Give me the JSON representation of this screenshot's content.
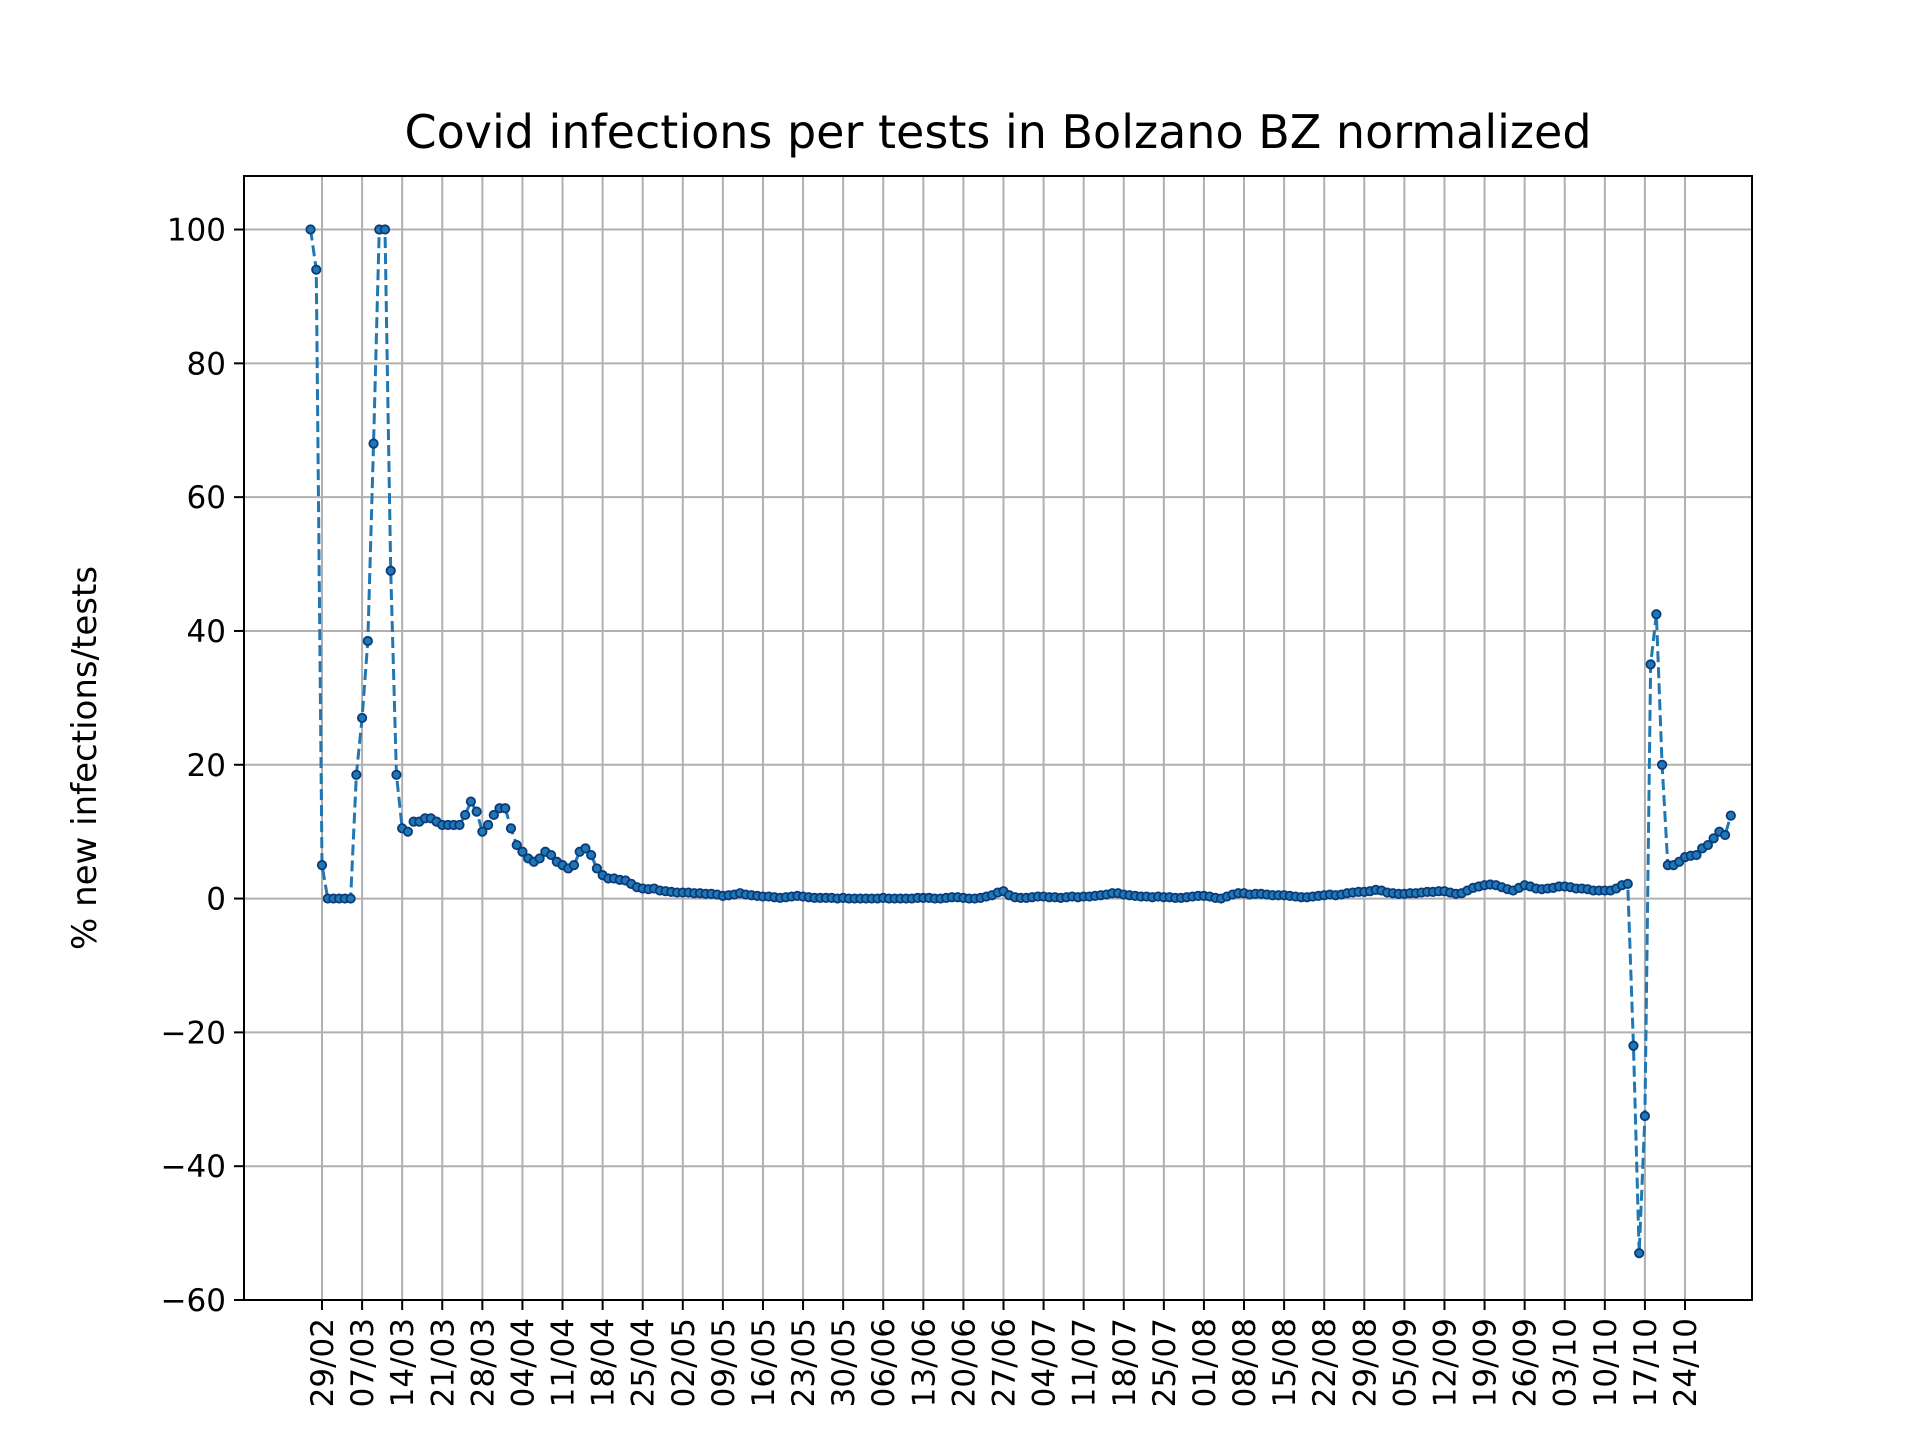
{
  "chart_data": {
    "type": "line",
    "title": "Covid infections per tests in Bolzano BZ normalized",
    "xlabel": "",
    "ylabel": "% new infections/tests",
    "ylim": [
      -60,
      108
    ],
    "yticks": [
      -60,
      -40,
      -20,
      0,
      20,
      40,
      60,
      80,
      100
    ],
    "ytick_labels": [
      "−60",
      "−40",
      "−20",
      "0",
      "20",
      "40",
      "60",
      "80",
      "100"
    ],
    "x_start": "2020-02-27",
    "xticks": [
      "29/02",
      "07/03",
      "14/03",
      "21/03",
      "28/03",
      "04/04",
      "11/04",
      "18/04",
      "25/04",
      "02/05",
      "09/05",
      "16/05",
      "23/05",
      "30/05",
      "06/06",
      "13/06",
      "20/06",
      "27/06",
      "04/07",
      "11/07",
      "18/07",
      "25/07",
      "01/08",
      "08/08",
      "15/08",
      "22/08",
      "29/08",
      "05/09",
      "12/09",
      "19/09",
      "26/09",
      "03/10",
      "10/10",
      "17/10",
      "24/10"
    ],
    "grid": true,
    "line_color": "#1f77b4",
    "marker_color": "#0b3a7a",
    "line_style": "dashed",
    "series": [
      {
        "name": "",
        "values": [
          100,
          94,
          5,
          0,
          0,
          0,
          0,
          0,
          18.5,
          27,
          38.5,
          68,
          100,
          100,
          49,
          18.5,
          10.5,
          10,
          11.5,
          11.5,
          12,
          12,
          11.5,
          11,
          11,
          11,
          11,
          12.5,
          14.5,
          13,
          10,
          11,
          12.5,
          13.5,
          13.5,
          10.5,
          8,
          7,
          6,
          5.5,
          6,
          7,
          6.5,
          5.5,
          5,
          4.5,
          5,
          7,
          7.5,
          6.5,
          4.5,
          3.5,
          3,
          3,
          2.8,
          2.7,
          2.2,
          1.7,
          1.5,
          1.4,
          1.5,
          1.2,
          1.1,
          1,
          0.9,
          0.9,
          0.9,
          0.8,
          0.8,
          0.7,
          0.7,
          0.6,
          0.4,
          0.5,
          0.6,
          0.8,
          0.6,
          0.5,
          0.4,
          0.3,
          0.3,
          0.2,
          0.1,
          0.2,
          0.3,
          0.4,
          0.3,
          0.2,
          0.1,
          0.1,
          0.1,
          0.1,
          0,
          0.1,
          0,
          0,
          0,
          0,
          0,
          0,
          0.1,
          0,
          0,
          0,
          0,
          0,
          0.1,
          0.1,
          0.1,
          0,
          0,
          0.1,
          0.2,
          0.2,
          0.1,
          0,
          0,
          0.1,
          0.3,
          0.5,
          0.9,
          1.1,
          0.5,
          0.2,
          0.1,
          0.1,
          0.2,
          0.3,
          0.3,
          0.2,
          0.2,
          0.1,
          0.2,
          0.3,
          0.2,
          0.3,
          0.3,
          0.4,
          0.5,
          0.6,
          0.8,
          0.8,
          0.6,
          0.5,
          0.4,
          0.3,
          0.3,
          0.2,
          0.3,
          0.2,
          0.2,
          0.1,
          0.1,
          0.2,
          0.3,
          0.4,
          0.4,
          0.3,
          0.1,
          0,
          0.3,
          0.6,
          0.8,
          0.8,
          0.6,
          0.7,
          0.7,
          0.6,
          0.5,
          0.5,
          0.5,
          0.4,
          0.3,
          0.2,
          0.2,
          0.3,
          0.4,
          0.5,
          0.6,
          0.5,
          0.6,
          0.8,
          0.9,
          1,
          1,
          1.1,
          1.3,
          1.2,
          0.9,
          0.8,
          0.7,
          0.7,
          0.8,
          0.8,
          0.9,
          1,
          1,
          1.1,
          1.1,
          0.9,
          0.7,
          0.8,
          1.2,
          1.6,
          1.8,
          2,
          2.1,
          2,
          1.7,
          1.4,
          1.2,
          1.6,
          2,
          1.8,
          1.5,
          1.4,
          1.5,
          1.6,
          1.8,
          1.8,
          1.7,
          1.5,
          1.5,
          1.4,
          1.2,
          1.2,
          1.2,
          1.2,
          1.5,
          2,
          2.2,
          -22,
          -53,
          -32.5,
          35,
          42.5,
          20,
          5,
          5,
          5.5,
          6.2,
          6.4,
          6.5,
          7.5,
          8,
          9,
          10,
          9.5,
          12.4
        ]
      }
    ]
  }
}
